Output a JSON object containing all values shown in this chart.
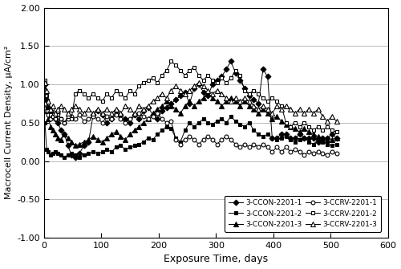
{
  "title": "",
  "xlabel": "Exposure Time, days",
  "ylabel": "Macrocell Current Density, μA/cm²",
  "xlim": [
    0,
    600
  ],
  "ylim": [
    -1.0,
    2.0
  ],
  "yticks": [
    -1.0,
    -0.5,
    0.0,
    0.5,
    1.0,
    1.5,
    2.0
  ],
  "ytick_labels": [
    "-1.00",
    "-0.50",
    "0.00",
    "0.50",
    "1.00",
    "1.50",
    "2.00"
  ],
  "xticks": [
    0,
    100,
    200,
    300,
    400,
    500,
    600
  ],
  "series": [
    {
      "label": "3-CCON-2201-1",
      "marker": "D",
      "filled": true,
      "x": [
        2,
        5,
        8,
        12,
        16,
        20,
        25,
        30,
        36,
        42,
        48,
        55,
        62,
        70,
        78,
        86,
        94,
        102,
        110,
        118,
        126,
        134,
        142,
        150,
        158,
        166,
        174,
        182,
        190,
        198,
        206,
        214,
        222,
        230,
        238,
        246,
        254,
        262,
        270,
        278,
        286,
        294,
        302,
        310,
        318,
        326,
        334,
        342,
        350,
        358,
        366,
        374,
        382,
        390,
        398,
        406,
        414,
        422,
        430,
        438,
        446,
        454,
        462,
        470,
        478,
        486,
        494,
        502,
        510
      ],
      "y": [
        1.0,
        0.8,
        0.7,
        0.65,
        0.6,
        0.55,
        0.5,
        0.4,
        0.35,
        0.2,
        0.08,
        0.05,
        0.1,
        0.2,
        0.25,
        0.6,
        0.65,
        0.6,
        0.5,
        0.55,
        0.65,
        0.6,
        0.55,
        0.5,
        0.6,
        0.55,
        0.65,
        0.7,
        0.6,
        0.55,
        0.65,
        0.7,
        0.75,
        0.8,
        0.85,
        0.9,
        0.75,
        0.95,
        1.0,
        0.9,
        0.85,
        1.0,
        1.05,
        1.1,
        1.2,
        1.3,
        1.15,
        1.05,
        0.95,
        0.85,
        0.8,
        0.75,
        1.2,
        1.1,
        0.3,
        0.3,
        0.35,
        0.35,
        0.3,
        0.3,
        0.35,
        0.3,
        0.3,
        0.3,
        0.25,
        0.3,
        0.3,
        0.35,
        0.3
      ]
    },
    {
      "label": "3-CCON-2201-2",
      "marker": "s",
      "filled": true,
      "x": [
        2,
        5,
        8,
        12,
        16,
        20,
        25,
        30,
        36,
        42,
        48,
        55,
        62,
        70,
        78,
        86,
        94,
        102,
        110,
        118,
        126,
        134,
        142,
        150,
        158,
        166,
        174,
        182,
        190,
        198,
        206,
        214,
        222,
        230,
        238,
        246,
        254,
        262,
        270,
        278,
        286,
        294,
        302,
        310,
        318,
        326,
        334,
        342,
        350,
        358,
        366,
        374,
        382,
        390,
        398,
        406,
        414,
        422,
        430,
        438,
        446,
        454,
        462,
        470,
        478,
        486,
        494,
        502,
        510
      ],
      "y": [
        0.5,
        0.15,
        0.12,
        0.08,
        0.1,
        0.12,
        0.1,
        0.08,
        0.05,
        0.08,
        0.1,
        0.08,
        0.05,
        0.08,
        0.1,
        0.12,
        0.1,
        0.12,
        0.15,
        0.12,
        0.18,
        0.2,
        0.15,
        0.18,
        0.2,
        0.22,
        0.25,
        0.3,
        0.28,
        0.35,
        0.4,
        0.45,
        0.42,
        0.3,
        0.25,
        0.4,
        0.5,
        0.45,
        0.5,
        0.55,
        0.5,
        0.48,
        0.52,
        0.55,
        0.5,
        0.58,
        0.52,
        0.48,
        0.45,
        0.5,
        0.4,
        0.35,
        0.32,
        0.35,
        0.3,
        0.28,
        0.3,
        0.32,
        0.28,
        0.25,
        0.28,
        0.3,
        0.25,
        0.22,
        0.28,
        0.25,
        0.22,
        0.2,
        0.22
      ]
    },
    {
      "label": "3-CCON-2201-3",
      "marker": "^",
      "filled": true,
      "x": [
        2,
        5,
        8,
        12,
        16,
        20,
        25,
        30,
        36,
        42,
        48,
        55,
        62,
        70,
        78,
        86,
        94,
        102,
        110,
        118,
        126,
        134,
        142,
        150,
        158,
        166,
        174,
        182,
        190,
        198,
        206,
        214,
        222,
        230,
        238,
        246,
        254,
        262,
        270,
        278,
        286,
        294,
        302,
        310,
        318,
        326,
        334,
        342,
        350,
        358,
        366,
        374,
        382,
        390,
        398,
        406,
        414,
        422,
        430,
        438,
        446,
        454,
        462,
        470,
        478,
        486,
        494,
        502,
        510
      ],
      "y": [
        0.85,
        0.65,
        0.55,
        0.45,
        0.4,
        0.35,
        0.3,
        0.28,
        0.35,
        0.3,
        0.25,
        0.2,
        0.22,
        0.25,
        0.28,
        0.32,
        0.28,
        0.25,
        0.3,
        0.35,
        0.38,
        0.32,
        0.28,
        0.35,
        0.4,
        0.45,
        0.5,
        0.55,
        0.62,
        0.68,
        0.72,
        0.78,
        0.72,
        0.68,
        0.62,
        0.72,
        0.78,
        0.72,
        0.78,
        0.82,
        0.88,
        0.82,
        0.78,
        0.72,
        0.78,
        0.82,
        0.78,
        0.72,
        0.78,
        0.72,
        0.68,
        0.62,
        0.68,
        0.62,
        0.55,
        0.58,
        0.52,
        0.48,
        0.45,
        0.42,
        0.38,
        0.42,
        0.38,
        0.35,
        0.32,
        0.3,
        0.28,
        0.28,
        0.3
      ]
    },
    {
      "label": "3-CCRV-2201-1",
      "marker": "o",
      "filled": false,
      "x": [
        2,
        5,
        8,
        12,
        16,
        20,
        25,
        30,
        36,
        42,
        48,
        55,
        62,
        70,
        78,
        86,
        94,
        102,
        110,
        118,
        126,
        134,
        142,
        150,
        158,
        166,
        174,
        182,
        190,
        198,
        206,
        214,
        222,
        230,
        238,
        246,
        254,
        262,
        270,
        278,
        286,
        294,
        302,
        310,
        318,
        326,
        334,
        342,
        350,
        358,
        366,
        374,
        382,
        390,
        398,
        406,
        414,
        422,
        430,
        438,
        446,
        454,
        462,
        470,
        478,
        486,
        494,
        502,
        510
      ],
      "y": [
        0.75,
        0.65,
        0.6,
        0.55,
        0.6,
        0.58,
        0.62,
        0.55,
        0.5,
        0.55,
        0.58,
        0.55,
        0.6,
        0.52,
        0.55,
        0.58,
        0.55,
        0.5,
        0.58,
        0.55,
        0.6,
        0.55,
        0.5,
        0.55,
        0.6,
        0.62,
        0.58,
        0.55,
        0.58,
        0.62,
        0.55,
        0.5,
        0.52,
        0.28,
        0.22,
        0.28,
        0.32,
        0.28,
        0.22,
        0.28,
        0.32,
        0.28,
        0.22,
        0.28,
        0.32,
        0.28,
        0.22,
        0.18,
        0.22,
        0.18,
        0.22,
        0.18,
        0.22,
        0.18,
        0.12,
        0.18,
        0.12,
        0.18,
        0.12,
        0.15,
        0.12,
        0.08,
        0.12,
        0.1,
        0.12,
        0.1,
        0.08,
        0.12,
        0.1
      ]
    },
    {
      "label": "3-CCRV-2201-2",
      "marker": "s",
      "filled": false,
      "x": [
        2,
        5,
        8,
        12,
        16,
        20,
        25,
        30,
        36,
        42,
        48,
        55,
        62,
        70,
        78,
        86,
        94,
        102,
        110,
        118,
        126,
        134,
        142,
        150,
        158,
        166,
        174,
        182,
        190,
        198,
        206,
        214,
        222,
        230,
        238,
        246,
        254,
        262,
        270,
        278,
        286,
        294,
        302,
        310,
        318,
        326,
        334,
        342,
        350,
        358,
        366,
        374,
        382,
        390,
        398,
        406,
        414,
        422,
        430,
        438,
        446,
        454,
        462,
        470,
        478,
        486,
        494,
        502,
        510
      ],
      "y": [
        1.05,
        0.85,
        0.65,
        0.6,
        0.58,
        0.55,
        0.6,
        0.55,
        0.5,
        0.58,
        0.55,
        0.88,
        0.92,
        0.88,
        0.82,
        0.88,
        0.82,
        0.78,
        0.88,
        0.82,
        0.92,
        0.88,
        0.82,
        0.92,
        0.88,
        0.98,
        1.02,
        1.05,
        1.08,
        1.02,
        1.12,
        1.18,
        1.3,
        1.25,
        1.18,
        1.12,
        1.18,
        1.22,
        1.12,
        1.05,
        1.12,
        1.05,
        1.02,
        1.08,
        1.02,
        1.08,
        1.18,
        1.12,
        0.92,
        0.88,
        0.92,
        0.88,
        0.82,
        0.78,
        0.82,
        0.78,
        0.72,
        0.5,
        0.45,
        0.5,
        0.45,
        0.5,
        0.45,
        0.4,
        0.45,
        0.4,
        0.45,
        0.4,
        0.38
      ]
    },
    {
      "label": "3-CCRV-2201-3",
      "marker": "^",
      "filled": false,
      "x": [
        2,
        5,
        8,
        12,
        16,
        20,
        25,
        30,
        36,
        42,
        48,
        55,
        62,
        70,
        78,
        86,
        94,
        102,
        110,
        118,
        126,
        134,
        142,
        150,
        158,
        166,
        174,
        182,
        190,
        198,
        206,
        214,
        222,
        230,
        238,
        246,
        254,
        262,
        270,
        278,
        286,
        294,
        302,
        310,
        318,
        326,
        334,
        342,
        350,
        358,
        366,
        374,
        382,
        390,
        398,
        406,
        414,
        422,
        430,
        438,
        446,
        454,
        462,
        470,
        478,
        486,
        494,
        502,
        510
      ],
      "y": [
        1.02,
        0.92,
        0.78,
        0.68,
        0.72,
        0.62,
        0.68,
        0.72,
        0.68,
        0.62,
        0.68,
        0.72,
        0.68,
        0.62,
        0.68,
        0.62,
        0.68,
        0.62,
        0.68,
        0.62,
        0.68,
        0.62,
        0.72,
        0.68,
        0.62,
        0.72,
        0.68,
        0.72,
        0.78,
        0.82,
        0.88,
        0.82,
        0.92,
        0.98,
        0.92,
        0.88,
        0.92,
        0.98,
        1.02,
        0.98,
        0.92,
        0.88,
        0.92,
        0.88,
        0.82,
        0.78,
        0.82,
        0.78,
        0.82,
        0.78,
        0.72,
        0.68,
        0.72,
        0.68,
        0.62,
        0.72,
        0.68,
        0.72,
        0.68,
        0.62,
        0.68,
        0.62,
        0.68,
        0.62,
        0.68,
        0.58,
        0.52,
        0.58,
        0.52
      ]
    }
  ],
  "background_color": "#ffffff",
  "grid_color": "#b0b0b0"
}
